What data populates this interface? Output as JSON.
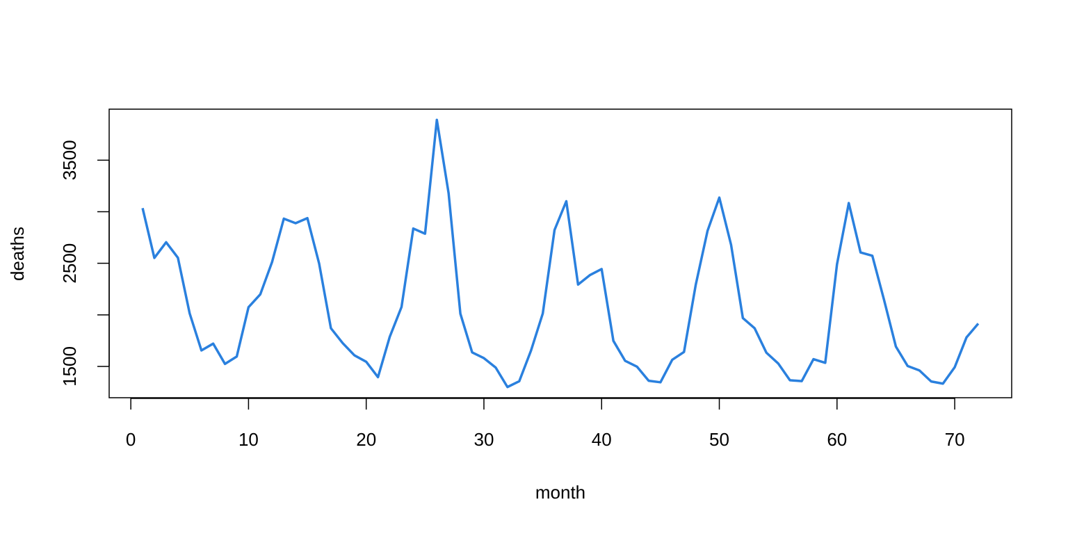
{
  "chart_data": {
    "type": "line",
    "x": [
      1,
      2,
      3,
      4,
      5,
      6,
      7,
      8,
      9,
      10,
      11,
      12,
      13,
      14,
      15,
      16,
      17,
      18,
      19,
      20,
      21,
      22,
      23,
      24,
      25,
      26,
      27,
      28,
      29,
      30,
      31,
      32,
      33,
      34,
      35,
      36,
      37,
      38,
      39,
      40,
      41,
      42,
      43,
      44,
      45,
      46,
      47,
      48,
      49,
      50,
      51,
      52,
      53,
      54,
      55,
      56,
      57,
      58,
      59,
      60,
      61,
      62,
      63,
      64,
      65,
      66,
      67,
      68,
      69,
      70,
      71,
      72
    ],
    "series": [
      {
        "name": "deaths",
        "color": "#2a80de",
        "values": [
          3035,
          2552,
          2704,
          2554,
          2014,
          1655,
          1721,
          1524,
          1596,
          2074,
          2199,
          2512,
          2933,
          2889,
          2938,
          2497,
          1870,
          1726,
          1607,
          1545,
          1396,
          1787,
          2076,
          2837,
          2787,
          3891,
          3179,
          2011,
          1636,
          1580,
          1489,
          1300,
          1356,
          1653,
          2013,
          2823,
          3102,
          2294,
          2385,
          2444,
          1748,
          1554,
          1498,
          1361,
          1346,
          1564,
          1640,
          2293,
          2815,
          3137,
          2679,
          1969,
          1870,
          1633,
          1529,
          1366,
          1357,
          1570,
          1535,
          2491,
          3084,
          2605,
          2573,
          2143,
          1693,
          1504,
          1461,
          1354,
          1333,
          1492,
          1781,
          1915
        ]
      }
    ],
    "x_label": "month",
    "y_label": "deaths",
    "xlim": [
      -1.84,
      74.84
    ],
    "ylim": [
      1196.36,
      3994.64
    ],
    "xticks": [
      0,
      10,
      20,
      30,
      40,
      50,
      60,
      70
    ],
    "yticks": [
      1500,
      {
        "value": 2000,
        "label": null
      },
      2500,
      {
        "value": 3000,
        "label": null
      },
      3500
    ]
  }
}
